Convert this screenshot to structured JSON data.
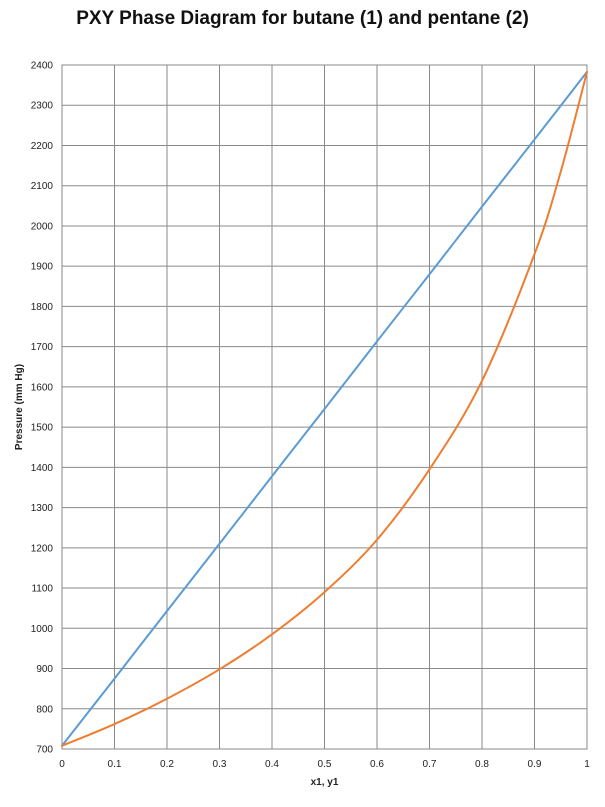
{
  "chart_data": {
    "type": "line",
    "title": "PXY Phase Diagram for butane (1) and pentane (2)",
    "xlabel": "x1, y1",
    "ylabel": "Pressure (mm Hg)",
    "xlim": [
      0,
      1
    ],
    "ylim": [
      700,
      2400
    ],
    "x_ticks": [
      "0",
      "0.1",
      "0.2",
      "0.3",
      "0.4",
      "0.5",
      "0.6",
      "0.7",
      "0.8",
      "0.9",
      "1"
    ],
    "y_ticks": [
      "700",
      "800",
      "900",
      "1000",
      "1100",
      "1200",
      "1300",
      "1400",
      "1500",
      "1600",
      "1700",
      "1800",
      "1900",
      "2000",
      "2100",
      "2200",
      "2300",
      "2400"
    ],
    "grid": true,
    "legend": "none",
    "series": [
      {
        "color": "#5b9bd5",
        "x": [
          0,
          0.1,
          0.2,
          0.3,
          0.4,
          0.5,
          0.6,
          0.7,
          0.8,
          0.9,
          1.0
        ],
        "y": [
          708,
          875,
          1043,
          1210,
          1378,
          1545,
          1713,
          1880,
          2048,
          2215,
          2383
        ]
      },
      {
        "color": "#ed7d31",
        "x": [
          0,
          0.1,
          0.2,
          0.3,
          0.4,
          0.5,
          0.6,
          0.7,
          0.8,
          0.9,
          0.95,
          1.0
        ],
        "y": [
          708,
          762,
          825,
          898,
          985,
          1090,
          1220,
          1395,
          1615,
          1930,
          2135,
          2383
        ]
      }
    ]
  }
}
